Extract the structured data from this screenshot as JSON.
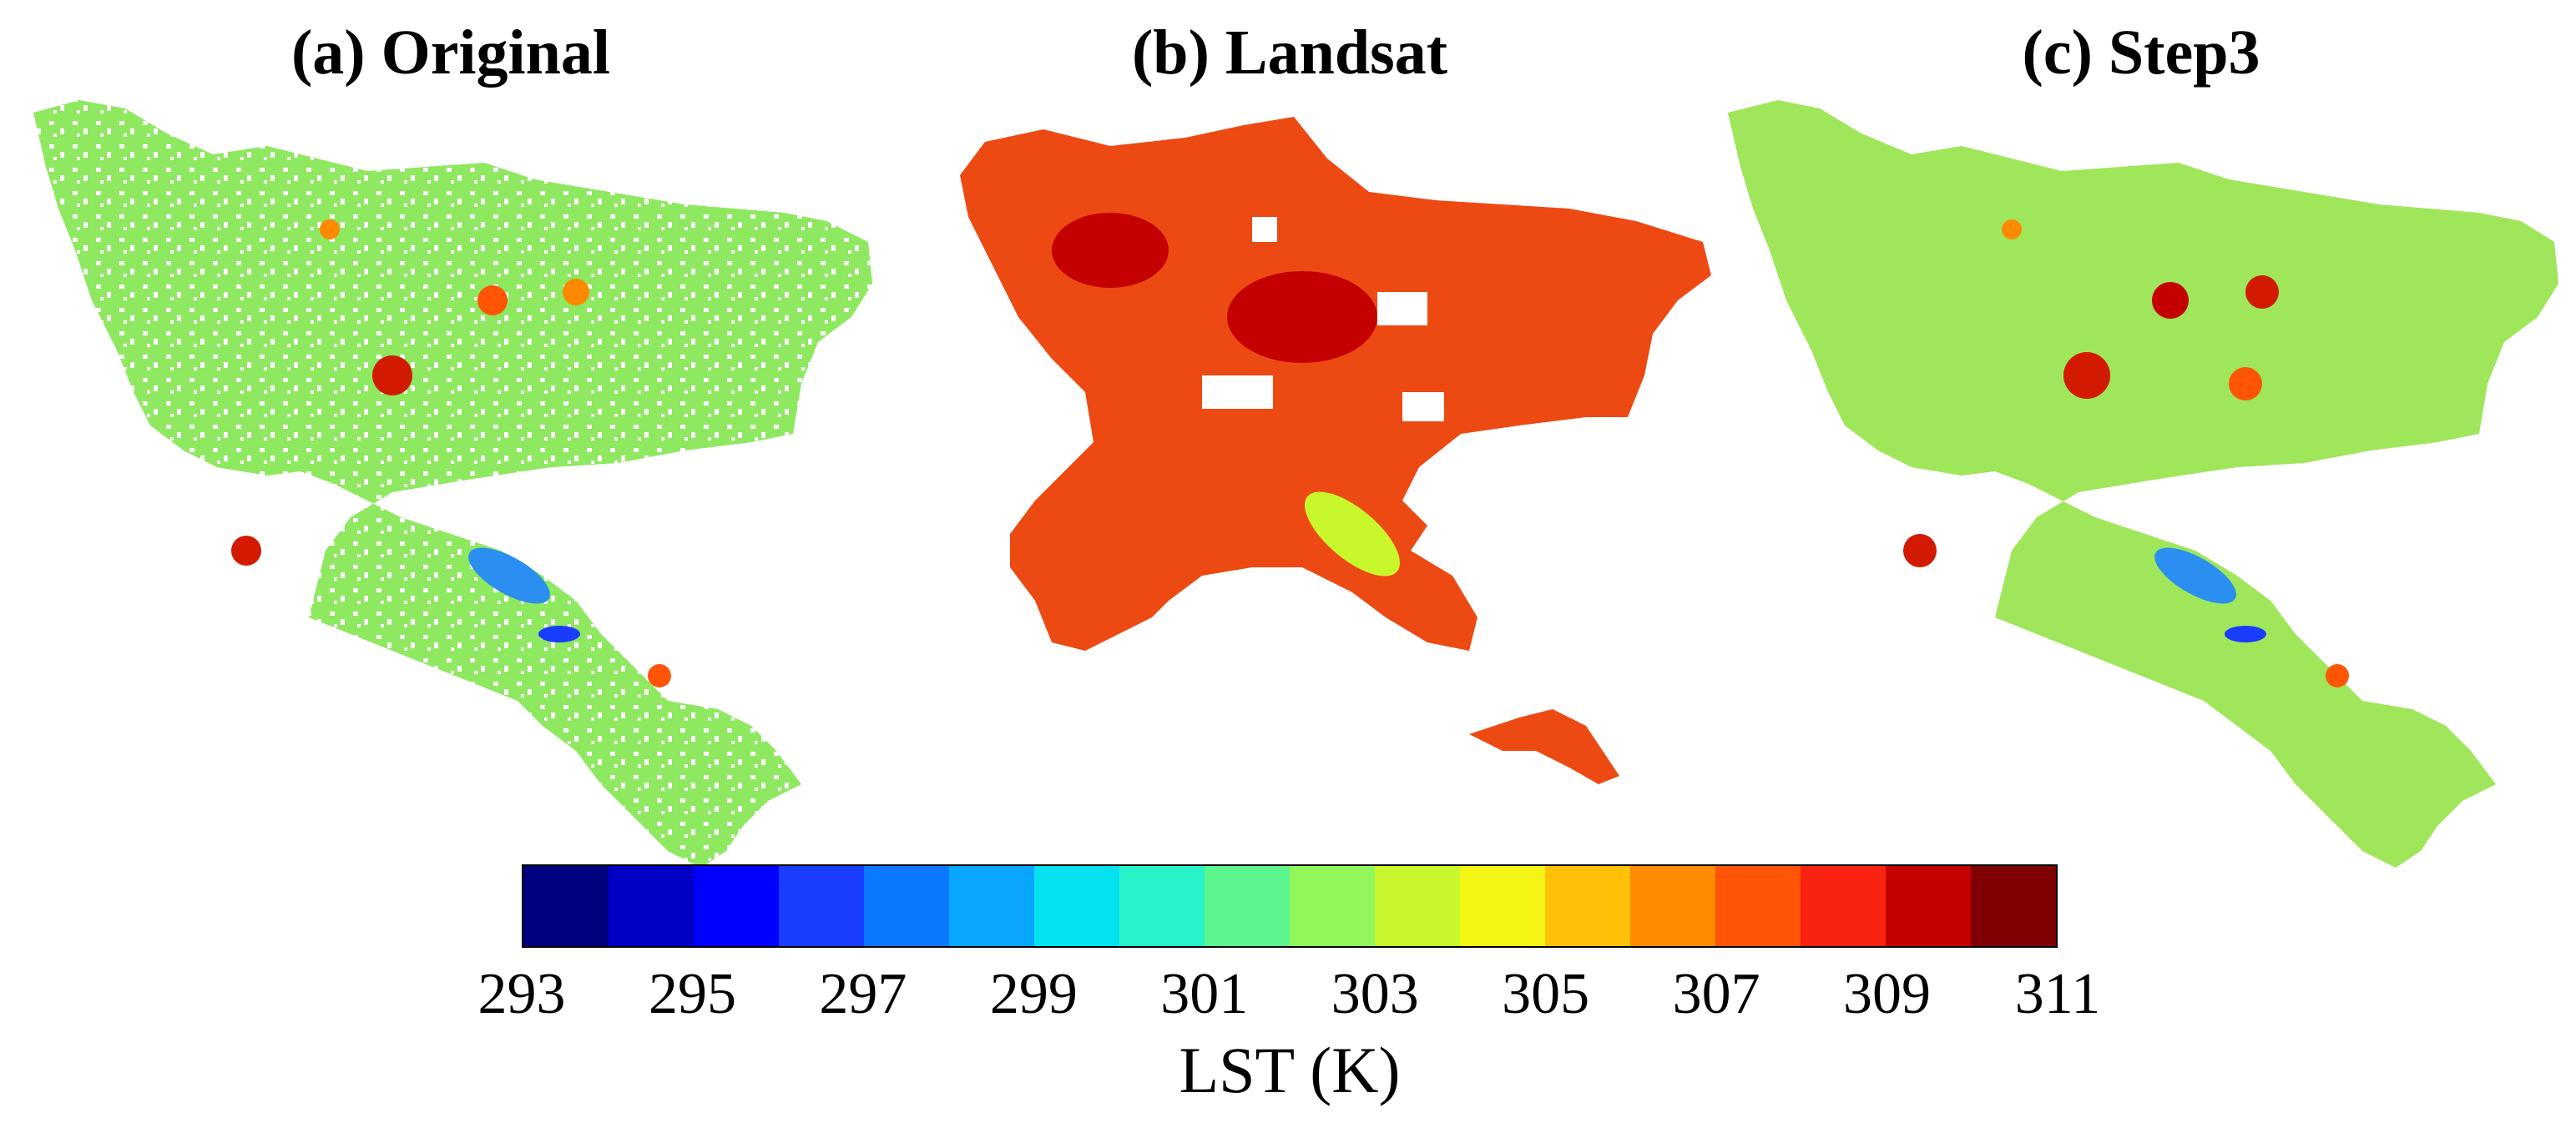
{
  "panels": [
    {
      "id": "a",
      "title": "(a) Original"
    },
    {
      "id": "b",
      "title": "(b) Landsat"
    },
    {
      "id": "c",
      "title": "(c) Step3"
    }
  ],
  "colorbar": {
    "label": "LST (K)",
    "min": 293,
    "max": 311,
    "step": 1,
    "tick_labels": [
      "293",
      "295",
      "297",
      "299",
      "301",
      "303",
      "305",
      "307",
      "309",
      "311"
    ],
    "colors": [
      "#00007f",
      "#0000c4",
      "#0000ff",
      "#1a3cff",
      "#0a78ff",
      "#09a6ff",
      "#05e2ef",
      "#27f2c8",
      "#5cf58e",
      "#91f75a",
      "#c8f72c",
      "#f5f515",
      "#ffc107",
      "#ff8a00",
      "#ff5505",
      "#fa2211",
      "#c40000",
      "#7f0000"
    ]
  },
  "map_colors": {
    "original_fill": "#8ee860",
    "landsat_fill": "#ec4a12",
    "step3_fill": "#9fe65a",
    "water": "#2a8ff0",
    "hotspot": "#d11a00",
    "missing": "#ffffff"
  }
}
